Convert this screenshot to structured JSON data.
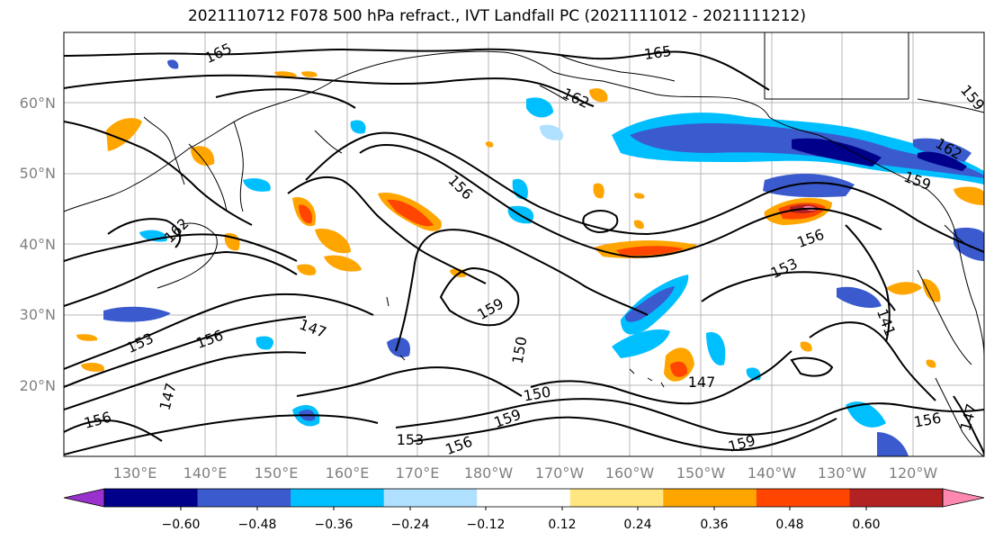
{
  "title": "2021110712 F078 500 hPa refract., IVT Landfall PC (2021111012 - 2021111212)",
  "latitude_labels": [
    "60°N",
    "50°N",
    "40°N",
    "30°N",
    "20°N"
  ],
  "longitude_labels": [
    "130°E",
    "140°E",
    "150°E",
    "160°E",
    "170°E",
    "180°W",
    "170°W",
    "160°W",
    "150°W",
    "140°W",
    "130°W",
    "120°W"
  ],
  "contour_labels": [
    "165",
    "165",
    "162",
    "162",
    "159",
    "156",
    "162",
    "159",
    "156",
    "153",
    "159",
    "147",
    "153",
    "156",
    "150",
    "147",
    "150",
    "147",
    "156",
    "159",
    "153",
    "156",
    "159",
    "156",
    "141",
    "147"
  ],
  "colorbar": {
    "tick_labels": [
      "−0.60",
      "−0.48",
      "−0.36",
      "−0.24",
      "−0.12",
      "0.12",
      "0.24",
      "0.36",
      "0.48",
      "0.60"
    ],
    "colors": [
      "#9932CC",
      "#00008B",
      "#3A5ACD",
      "#00BFFF",
      "#B0E0FF",
      "#FFFFFF",
      "#FFE680",
      "#FFA500",
      "#FF4500",
      "#B22222",
      "#FF88B0"
    ]
  },
  "shading_colors": {
    "deep_blue": "#3A5ACD",
    "navy": "#00008B",
    "cyan": "#00BFFF",
    "light_blue": "#B0E0FF",
    "yellow": "#FFE680",
    "orange": "#FFA500",
    "red_orange": "#FF4500",
    "dark_red": "#B22222",
    "pink": "#FF88B0"
  }
}
